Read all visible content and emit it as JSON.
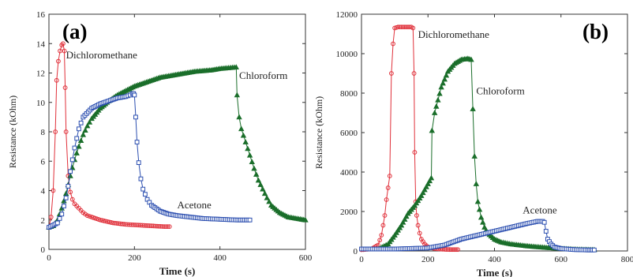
{
  "panels": [
    {
      "id": "a",
      "panel_label": "(a)",
      "xlabel": "Time (s)",
      "ylabel": "Resistance (kOhm)",
      "xlim": [
        0,
        600
      ],
      "ylim": [
        0,
        16
      ],
      "xticks": [
        0,
        200,
        400,
        600
      ],
      "yticks": [
        0,
        2,
        4,
        6,
        8,
        10,
        12,
        14,
        16
      ],
      "annotations": [
        {
          "text": "Dichloromethane",
          "x": 40,
          "y": 13.0
        },
        {
          "text": "Chloroform",
          "x": 445,
          "y": 11.6
        },
        {
          "text": "Acetone",
          "x": 300,
          "y": 2.8
        }
      ]
    },
    {
      "id": "b",
      "panel_label": "(b)",
      "xlabel": "Time (s)",
      "ylabel": "Resistance (kOhm)",
      "xlim": [
        0,
        800
      ],
      "ylim": [
        0,
        12000
      ],
      "xticks": [
        0,
        200,
        400,
        600,
        800
      ],
      "yticks": [
        0,
        2000,
        4000,
        6000,
        8000,
        10000,
        12000
      ],
      "annotations": [
        {
          "text": "Dichloromethane",
          "x": 170,
          "y": 10800
        },
        {
          "text": "Chloroform",
          "x": 345,
          "y": 7950
        },
        {
          "text": "Acetone",
          "x": 485,
          "y": 1900
        }
      ]
    }
  ],
  "colors": {
    "dichloromethane": "#e0303a",
    "chloroform": "#1a6e2a",
    "acetone": "#2c4fb0",
    "line": "#222222"
  },
  "chart_data": [
    {
      "type": "line",
      "series": [
        {
          "name": "Dichloromethane",
          "marker": "circle",
          "x": [
            0,
            5,
            10,
            15,
            18,
            22,
            26,
            30,
            33,
            36,
            38,
            40,
            45,
            50,
            55,
            60,
            70,
            80,
            90,
            100,
            120,
            150,
            180,
            210,
            240,
            270,
            282
          ],
          "y": [
            1.5,
            2.2,
            4.0,
            8.0,
            11.5,
            12.8,
            13.5,
            13.9,
            14.0,
            13.5,
            11.0,
            8.0,
            5.0,
            3.9,
            3.4,
            3.1,
            2.8,
            2.5,
            2.3,
            2.2,
            2.0,
            1.8,
            1.7,
            1.65,
            1.6,
            1.55,
            1.55
          ]
        },
        {
          "name": "Chloroform",
          "marker": "triangle",
          "x": [
            0,
            10,
            20,
            30,
            40,
            50,
            60,
            70,
            80,
            90,
            100,
            120,
            140,
            160,
            180,
            200,
            220,
            240,
            260,
            280,
            300,
            320,
            340,
            360,
            380,
            400,
            420,
            438,
            440,
            445,
            450,
            460,
            470,
            480,
            490,
            500,
            510,
            520,
            540,
            560,
            580,
            600
          ],
          "y": [
            1.5,
            1.6,
            2.0,
            2.8,
            3.8,
            5.0,
            6.1,
            7.0,
            7.8,
            8.4,
            8.9,
            9.6,
            10.1,
            10.5,
            10.8,
            11.1,
            11.3,
            11.5,
            11.7,
            11.8,
            11.9,
            12.0,
            12.1,
            12.15,
            12.2,
            12.3,
            12.35,
            12.4,
            10.5,
            9.0,
            8.2,
            7.3,
            6.4,
            5.5,
            4.7,
            4.1,
            3.5,
            3.0,
            2.5,
            2.2,
            2.1,
            2.0
          ]
        },
        {
          "name": "Acetone",
          "marker": "square",
          "x": [
            0,
            20,
            30,
            40,
            45,
            50,
            60,
            70,
            80,
            100,
            120,
            140,
            160,
            180,
            190,
            195,
            198,
            200,
            203,
            206,
            210,
            215,
            220,
            230,
            240,
            260,
            280,
            300,
            330,
            360,
            400,
            440,
            470
          ],
          "y": [
            1.5,
            1.8,
            2.4,
            3.5,
            4.3,
            5.3,
            6.9,
            8.2,
            9.0,
            9.6,
            9.9,
            10.1,
            10.3,
            10.4,
            10.5,
            10.6,
            10.6,
            10.5,
            9.0,
            7.3,
            5.9,
            4.8,
            4.1,
            3.4,
            3.0,
            2.6,
            2.4,
            2.3,
            2.2,
            2.1,
            2.05,
            2.0,
            2.0
          ]
        }
      ]
    },
    {
      "type": "line",
      "series": [
        {
          "name": "Dichloromethane",
          "marker": "circle",
          "x": [
            0,
            30,
            50,
            60,
            70,
            75,
            80,
            85,
            90,
            95,
            100,
            110,
            130,
            150,
            155,
            158,
            160,
            163,
            166,
            170,
            175,
            180,
            190,
            200,
            220,
            250,
            270,
            290
          ],
          "y": [
            60,
            100,
            300,
            800,
            1800,
            2600,
            3200,
            3800,
            9000,
            10500,
            11300,
            11350,
            11350,
            11350,
            11300,
            9000,
            5000,
            2500,
            1800,
            1300,
            900,
            600,
            350,
            200,
            120,
            80,
            70,
            70
          ]
        },
        {
          "name": "Chloroform",
          "marker": "triangle",
          "x": [
            50,
            80,
            100,
            120,
            130,
            140,
            150,
            160,
            170,
            180,
            190,
            200,
            210,
            212,
            220,
            240,
            260,
            280,
            300,
            320,
            330,
            335,
            340,
            345,
            350,
            360,
            370,
            380,
            400,
            420,
            450,
            500,
            550,
            600,
            650,
            700
          ],
          "y": [
            100,
            350,
            800,
            1300,
            1600,
            1900,
            2100,
            2300,
            2550,
            2800,
            3100,
            3400,
            3700,
            6100,
            7000,
            8300,
            9100,
            9500,
            9700,
            9750,
            9700,
            7200,
            4800,
            3400,
            2500,
            1700,
            1200,
            900,
            600,
            450,
            350,
            250,
            180,
            120,
            80,
            60
          ]
        },
        {
          "name": "Acetone",
          "marker": "square",
          "x": [
            0,
            100,
            200,
            250,
            300,
            350,
            400,
            450,
            500,
            530,
            545,
            550,
            555,
            560,
            570,
            580,
            600,
            640,
            680,
            700
          ],
          "y": [
            100,
            100,
            150,
            300,
            600,
            800,
            1000,
            1200,
            1400,
            1500,
            1500,
            1450,
            1000,
            600,
            350,
            200,
            120,
            70,
            50,
            50
          ]
        }
      ]
    }
  ]
}
